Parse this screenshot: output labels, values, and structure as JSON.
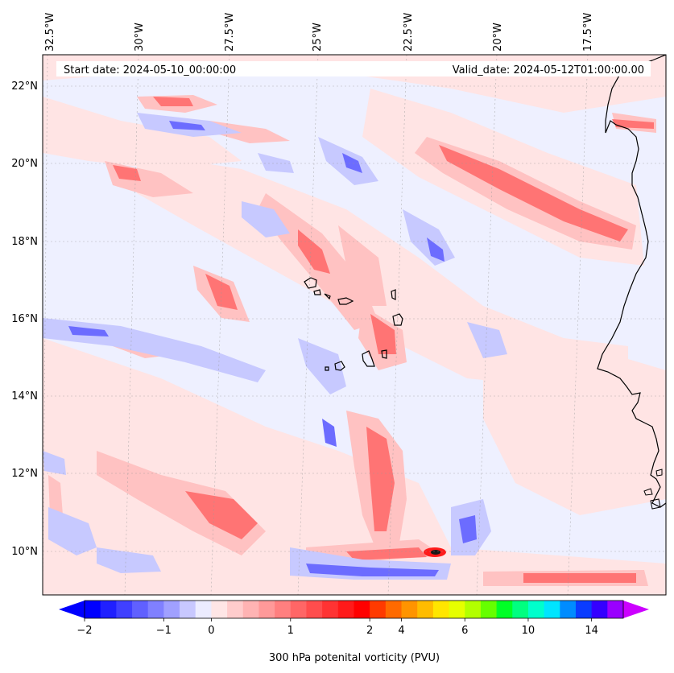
{
  "header": {
    "start_date": "Start date: 2024-05-10_00:00:00",
    "valid_date": "Valid_date: 2024-05-12T01:00:00.00"
  },
  "longitude_labels": [
    "32.5°W",
    "30°W",
    "27.5°W",
    "25°W",
    "22.5°W",
    "20°W",
    "17.5°W"
  ],
  "latitude_labels": [
    "22°N",
    "20°N",
    "18°N",
    "16°N",
    "14°N",
    "12°N",
    "10°N"
  ],
  "colorbar": {
    "title": "300 hPa potenital vorticity (PVU)",
    "tick_labels": [
      "−2",
      "−1",
      "0",
      "1",
      "2",
      "4",
      "6",
      "10",
      "14"
    ],
    "tick_values": [
      -2,
      -1,
      0,
      1,
      2,
      4,
      6,
      10,
      14
    ],
    "colors": [
      "#0000ff",
      "#2020ff",
      "#4040ff",
      "#6060ff",
      "#8080ff",
      "#a0a0ff",
      "#c8c8ff",
      "#ececff",
      "#ffe6e6",
      "#ffcccc",
      "#ffb3b3",
      "#ff9999",
      "#ff7f7f",
      "#ff6666",
      "#ff4d4d",
      "#ff3333",
      "#ff1a1a",
      "#ff0000",
      "#ff3a00",
      "#ff6a00",
      "#ff9400",
      "#ffbc00",
      "#ffe600",
      "#e6ff00",
      "#b3ff00",
      "#66ff00",
      "#00ff26",
      "#00ff80",
      "#00ffcc",
      "#00e5ff",
      "#008cff",
      "#0a3cff",
      "#3400ff",
      "#9a00ff"
    ],
    "extend": "both",
    "min_color": "#0000ff",
    "max_color": "#cc00ff"
  },
  "map": {
    "lon_range": [
      -33,
      -16
    ],
    "lat_range": [
      8.9,
      22.7
    ],
    "background_color": "#eef0ff",
    "field": "300 hPa potential vorticity"
  }
}
